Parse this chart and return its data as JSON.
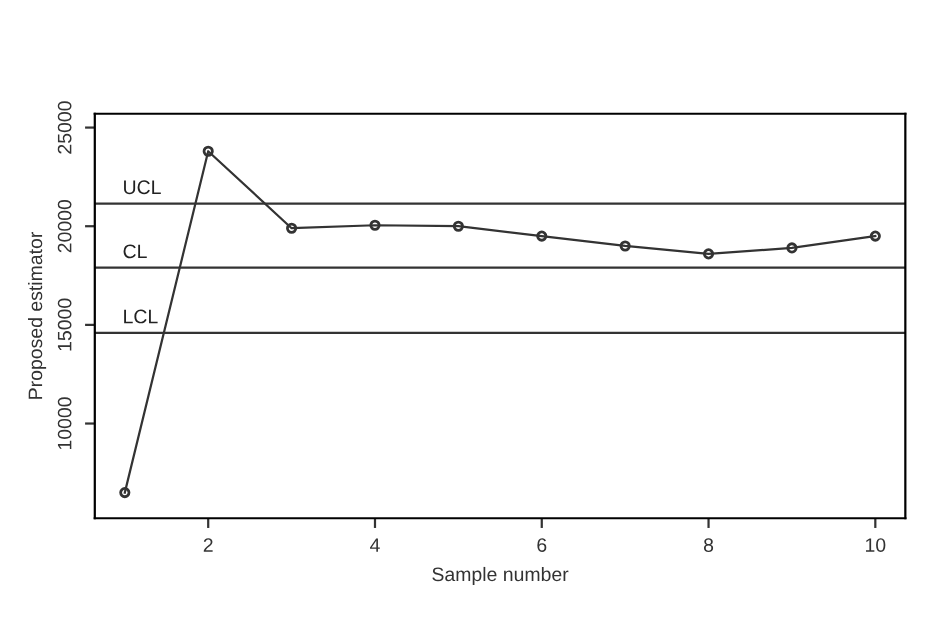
{
  "chart_data": {
    "type": "line",
    "xlabel": "Sample number",
    "ylabel": "Proposed estimator",
    "x": [
      1,
      2,
      3,
      4,
      5,
      6,
      7,
      8,
      9,
      10
    ],
    "series": [
      {
        "color": "#333333",
        "values": [
          6500,
          23800,
          19900,
          20050,
          20000,
          19500,
          19000,
          18600,
          18900,
          19500
        ]
      }
    ],
    "xlim": [
      0.64,
      10.36
    ],
    "ylim": [
      5200,
      25700
    ],
    "xticks": [
      2,
      4,
      6,
      8,
      10
    ],
    "yticks": [
      10000,
      15000,
      20000,
      25000
    ],
    "ref_lines": [
      {
        "axis": "y",
        "value": 21150,
        "label": "UCL",
        "color": "#333333"
      },
      {
        "axis": "y",
        "value": 17900,
        "label": "CL",
        "color": "#333333"
      },
      {
        "axis": "y",
        "value": 14600,
        "label": "LCL",
        "color": "#333333"
      }
    ],
    "marker": "circle",
    "line_style": "solid",
    "grid": false,
    "legend": false
  }
}
